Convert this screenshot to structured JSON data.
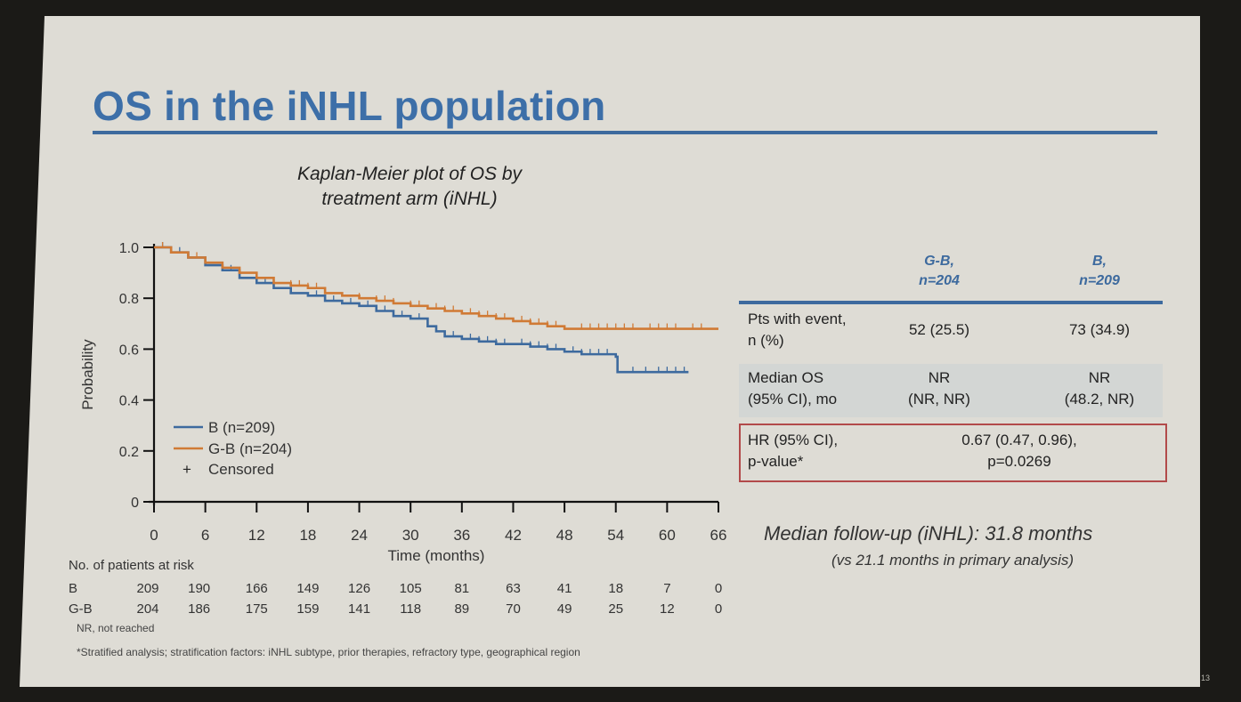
{
  "slide": {
    "title": "OS in the iNHL population",
    "page_number": "13"
  },
  "chart_data": {
    "type": "line",
    "subtype": "kaplan-meier",
    "title": "Kaplan-Meier plot of OS by treatment arm (iNHL)",
    "title_lines": [
      "Kaplan-Meier plot of OS by",
      "treatment arm (iNHL)"
    ],
    "xlabel": "Time (months)",
    "ylabel": "Probability",
    "xlim": [
      0,
      66
    ],
    "ylim": [
      0,
      1.0
    ],
    "xticks": [
      0,
      6,
      12,
      18,
      24,
      30,
      36,
      42,
      48,
      54,
      60,
      66
    ],
    "xtick_labels": [
      "0",
      "6",
      "12",
      "18",
      "24",
      "30",
      "36",
      "42",
      "48",
      "54",
      "60",
      "66"
    ],
    "yticks": [
      0,
      0.2,
      0.4,
      0.6,
      0.8,
      1.0
    ],
    "ytick_labels": [
      "0",
      "0.2",
      "0.4",
      "0.6",
      "0.8",
      "1.0"
    ],
    "grid": false,
    "legend_position": "bottom-left",
    "legend": [
      {
        "label": "B (n=209)",
        "color": "#3d6a9e",
        "symbol": "line"
      },
      {
        "label": "G-B (n=204)",
        "color": "#d07a35",
        "symbol": "line"
      },
      {
        "label": "Censored",
        "color": "#222222",
        "symbol": "+"
      }
    ],
    "series": [
      {
        "name": "B (n=209)",
        "color": "#3d6a9e",
        "x": [
          0,
          2,
          4,
          6,
          8,
          10,
          12,
          14,
          16,
          18,
          20,
          22,
          24,
          26,
          28,
          30,
          32,
          33,
          34,
          36,
          38,
          40,
          42,
          44,
          46,
          48,
          50,
          52,
          54,
          54.2,
          57,
          60,
          62.5
        ],
        "y": [
          1.0,
          0.98,
          0.96,
          0.93,
          0.91,
          0.88,
          0.86,
          0.84,
          0.82,
          0.81,
          0.79,
          0.78,
          0.77,
          0.75,
          0.73,
          0.72,
          0.69,
          0.67,
          0.65,
          0.64,
          0.63,
          0.62,
          0.62,
          0.61,
          0.6,
          0.59,
          0.58,
          0.58,
          0.57,
          0.51,
          0.51,
          0.51,
          0.51
        ],
        "censored_x": [
          1,
          3,
          9,
          13,
          19,
          21,
          23,
          25,
          27,
          29,
          31,
          34,
          35,
          37,
          38,
          39,
          40,
          41,
          43,
          44,
          45,
          46,
          47,
          49,
          50,
          51,
          52,
          53,
          56,
          57.5,
          59,
          60,
          61,
          62
        ]
      },
      {
        "name": "G-B (n=204)",
        "color": "#d07a35",
        "x": [
          0,
          2,
          4,
          6,
          8,
          10,
          12,
          14,
          16,
          18,
          20,
          22,
          24,
          26,
          28,
          30,
          32,
          34,
          36,
          38,
          40,
          42,
          44,
          46,
          48,
          52,
          56,
          60,
          66
        ],
        "y": [
          1.0,
          0.98,
          0.96,
          0.94,
          0.92,
          0.9,
          0.88,
          0.86,
          0.85,
          0.84,
          0.82,
          0.81,
          0.8,
          0.79,
          0.78,
          0.77,
          0.76,
          0.75,
          0.74,
          0.73,
          0.72,
          0.71,
          0.7,
          0.69,
          0.68,
          0.68,
          0.68,
          0.68,
          0.68
        ],
        "censored_x": [
          1,
          2,
          5,
          8,
          14,
          16,
          17,
          18,
          19,
          20,
          24,
          26,
          27,
          28,
          30,
          31,
          33,
          34,
          35,
          37,
          38,
          39,
          40,
          41,
          43,
          44,
          45,
          46,
          47,
          50,
          51,
          52,
          53,
          54,
          55,
          56,
          58,
          59,
          60,
          61,
          63,
          64
        ]
      }
    ],
    "risk_table": {
      "header": "No. of patients at risk",
      "rows": [
        {
          "label": "B",
          "values": [
            "209",
            "190",
            "166",
            "149",
            "126",
            "105",
            "81",
            "63",
            "41",
            "18",
            "7",
            "0"
          ]
        },
        {
          "label": "G-B",
          "values": [
            "204",
            "186",
            "175",
            "159",
            "141",
            "118",
            "89",
            "70",
            "49",
            "25",
            "12",
            "0"
          ]
        }
      ]
    }
  },
  "summary_table": {
    "columns": [
      {
        "line1": "G-B,",
        "line2": "n=204"
      },
      {
        "line1": "B,",
        "line2": "n=209"
      }
    ],
    "rows": [
      {
        "label1": "Pts with event,",
        "label2": "n (%)",
        "gb": "52 (25.5)",
        "b": "73 (34.9)"
      },
      {
        "label1": "Median OS",
        "label2": "(95% CI), mo",
        "gb1": "NR",
        "gb2": "(NR, NR)",
        "b1": "NR",
        "b2": "(48.2, NR)"
      },
      {
        "label1": "HR (95% CI),",
        "label2": "p-value*",
        "value1": "0.67 (0.47, 0.96),",
        "value2": "p=0.0269"
      }
    ]
  },
  "followup": {
    "line1": "Median follow-up (iNHL): 31.8 months",
    "line2": "(vs 21.1 months in primary analysis)"
  },
  "footnotes": {
    "nr": "NR, not reached",
    "stratified": "*Stratified analysis; stratification factors: iNHL subtype, prior therapies, refractory type, geographical region"
  }
}
